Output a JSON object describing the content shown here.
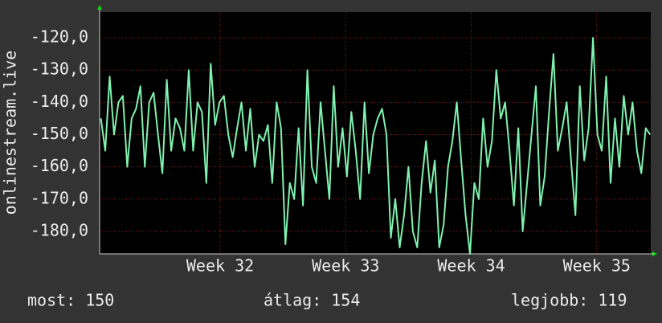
{
  "chart_data": {
    "type": "line",
    "ylabel": "onlinestream.live",
    "xlim": [
      31.04,
      35.43
    ],
    "xticks": [
      {
        "value": 32,
        "label": "Week 32"
      },
      {
        "value": 33,
        "label": "Week 33"
      },
      {
        "value": 34,
        "label": "Week 34"
      },
      {
        "value": 35,
        "label": "Week 35"
      }
    ],
    "ylim": [
      -187,
      -112
    ],
    "yticks": [
      {
        "value": -120,
        "label": "-120,0"
      },
      {
        "value": -130,
        "label": "-130,0"
      },
      {
        "value": -140,
        "label": "-140,0"
      },
      {
        "value": -150,
        "label": "-150,0"
      },
      {
        "value": -160,
        "label": "-160,0"
      },
      {
        "value": -170,
        "label": "-170,0"
      },
      {
        "value": -180,
        "label": "-180,0"
      }
    ],
    "grid": true,
    "x": [
      31.05,
      31.085,
      31.12,
      31.155,
      31.19,
      31.225,
      31.26,
      31.295,
      31.33,
      31.365,
      31.4,
      31.435,
      31.47,
      31.505,
      31.54,
      31.575,
      31.61,
      31.645,
      31.68,
      31.715,
      31.75,
      31.785,
      31.82,
      31.855,
      31.89,
      31.925,
      31.96,
      31.995,
      32.03,
      32.065,
      32.1,
      32.135,
      32.17,
      32.205,
      32.24,
      32.275,
      32.31,
      32.345,
      32.38,
      32.415,
      32.45,
      32.485,
      32.52,
      32.555,
      32.59,
      32.625,
      32.66,
      32.695,
      32.73,
      32.765,
      32.8,
      32.835,
      32.87,
      32.905,
      32.94,
      32.975,
      33.01,
      33.045,
      33.08,
      33.115,
      33.15,
      33.185,
      33.22,
      33.255,
      33.29,
      33.325,
      33.36,
      33.395,
      33.43,
      33.465,
      33.5,
      33.535,
      33.57,
      33.605,
      33.64,
      33.675,
      33.71,
      33.745,
      33.78,
      33.815,
      33.85,
      33.885,
      33.92,
      33.955,
      33.99,
      34.025,
      34.06,
      34.095,
      34.13,
      34.165,
      34.2,
      34.235,
      34.27,
      34.305,
      34.34,
      34.375,
      34.41,
      34.445,
      34.48,
      34.515,
      34.55,
      34.585,
      34.62,
      34.655,
      34.69,
      34.725,
      34.76,
      34.795,
      34.83,
      34.865,
      34.9,
      34.935,
      34.97,
      35.005,
      35.04,
      35.075,
      35.11,
      35.145,
      35.18,
      35.215,
      35.25,
      35.285,
      35.32,
      35.355,
      35.39,
      35.425
    ],
    "series": [
      {
        "name": "onlinestream.live",
        "color": "#7ff2b0",
        "values": [
          -145,
          -155,
          -132,
          -150,
          -140,
          -138,
          -160,
          -145,
          -142,
          -135,
          -160,
          -140,
          -137,
          -150,
          -162,
          -133,
          -155,
          -145,
          -148,
          -155,
          -130,
          -155,
          -140,
          -143,
          -165,
          -128,
          -147,
          -140,
          -138,
          -150,
          -157,
          -148,
          -140,
          -155,
          -142,
          -160,
          -150,
          -152,
          -147,
          -165,
          -140,
          -148,
          -184,
          -165,
          -170,
          -148,
          -172,
          -130,
          -160,
          -165,
          -140,
          -155,
          -170,
          -135,
          -160,
          -148,
          -163,
          -143,
          -155,
          -170,
          -140,
          -162,
          -150,
          -145,
          -142,
          -150,
          -182,
          -170,
          -185,
          -175,
          -160,
          -180,
          -185,
          -165,
          -152,
          -168,
          -158,
          -185,
          -178,
          -160,
          -152,
          -140,
          -158,
          -175,
          -187,
          -165,
          -170,
          -145,
          -160,
          -152,
          -130,
          -145,
          -140,
          -155,
          -172,
          -148,
          -180,
          -165,
          -150,
          -135,
          -172,
          -163,
          -143,
          -125,
          -155,
          -148,
          -140,
          -158,
          -175,
          -135,
          -158,
          -148,
          -120,
          -150,
          -155,
          -132,
          -165,
          -145,
          -160,
          -138,
          -150,
          -140,
          -155,
          -162,
          -148,
          -150
        ]
      }
    ],
    "footer": [
      {
        "label": "most:",
        "value": 150
      },
      {
        "label": "átlag:",
        "value": 154
      },
      {
        "label": "legjobb:",
        "value": 119
      }
    ]
  }
}
